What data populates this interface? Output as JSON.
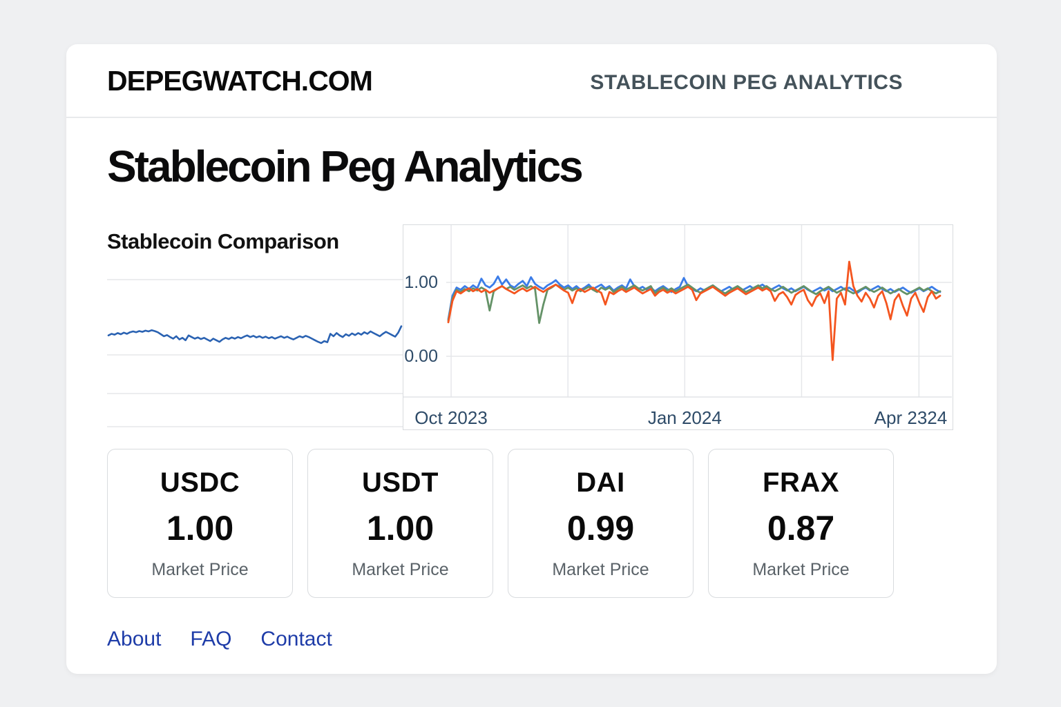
{
  "header": {
    "logo": "DEPEGWATCH.COM",
    "tagline": "STABLECOIN PEG ANALYTICS"
  },
  "page": {
    "title": "Stablecoin Peg Analytics",
    "section_title": "Stablecoin Comparison"
  },
  "cards": [
    {
      "symbol": "USDC",
      "price": "1.00",
      "label": "Market Price"
    },
    {
      "symbol": "USDT",
      "price": "1.00",
      "label": "Market Price"
    },
    {
      "symbol": "DAI",
      "price": "0.99",
      "label": "Market Price"
    },
    {
      "symbol": "FRAX",
      "price": "0.87",
      "label": "Market Price"
    }
  ],
  "footer": {
    "links": [
      "About",
      "FAQ",
      "Contact"
    ]
  },
  "colors": {
    "accent_link": "#1e3ca8",
    "axis_label": "#2e4b68",
    "spark_line": "#2a62b2",
    "series_blue": "#3b7ce8",
    "series_green": "#649267",
    "series_orange": "#f4551f"
  },
  "chart_data": [
    {
      "type": "line",
      "title": "",
      "xlabel": "",
      "ylabel": "",
      "grid": true,
      "legend": false,
      "series": [
        {
          "name": "spark",
          "color": "#2a62b2",
          "values": [
            0.52,
            0.56,
            0.54,
            0.58,
            0.55,
            0.59,
            0.56,
            0.6,
            0.62,
            0.6,
            0.63,
            0.61,
            0.64,
            0.62,
            0.65,
            0.63,
            0.6,
            0.55,
            0.5,
            0.53,
            0.48,
            0.44,
            0.5,
            0.42,
            0.46,
            0.4,
            0.52,
            0.48,
            0.44,
            0.47,
            0.43,
            0.46,
            0.42,
            0.38,
            0.44,
            0.4,
            0.36,
            0.42,
            0.46,
            0.43,
            0.47,
            0.44,
            0.48,
            0.45,
            0.49,
            0.52,
            0.48,
            0.51,
            0.47,
            0.5,
            0.46,
            0.49,
            0.45,
            0.48,
            0.44,
            0.47,
            0.5,
            0.46,
            0.49,
            0.45,
            0.42,
            0.46,
            0.5,
            0.47,
            0.51,
            0.48,
            0.44,
            0.4,
            0.36,
            0.33,
            0.38,
            0.35,
            0.56,
            0.5,
            0.58,
            0.52,
            0.48,
            0.55,
            0.51,
            0.57,
            0.53,
            0.58,
            0.54,
            0.6,
            0.56,
            0.62,
            0.58,
            0.54,
            0.5,
            0.56,
            0.61,
            0.57,
            0.53,
            0.49,
            0.59,
            0.75
          ]
        }
      ]
    },
    {
      "type": "line",
      "title": "Stablecoin Comparison",
      "xlabel": "",
      "ylabel": "",
      "grid": true,
      "legend": false,
      "x_axis": {
        "ticks": [
          {
            "label": "Oct 2023",
            "pos": 0.087
          },
          {
            "label": "Jan 2024",
            "pos": 0.513
          },
          {
            "label": "Apr 2324",
            "pos": 0.925
          }
        ],
        "gridlines": [
          0.087,
          0.3,
          0.513,
          0.726,
          0.94
        ]
      },
      "y_axis": {
        "ticks": [
          {
            "label": "1.00",
            "value": 1.0
          },
          {
            "label": "0.00",
            "value": 0.0
          }
        ],
        "range": [
          -0.55,
          1.55
        ]
      },
      "series": [
        {
          "name": "blue",
          "color": "#3b7ce8",
          "values": [
            0.5,
            0.82,
            0.93,
            0.9,
            0.95,
            0.91,
            0.96,
            0.92,
            1.05,
            0.96,
            0.93,
            0.98,
            1.08,
            0.97,
            1.04,
            0.96,
            0.93,
            0.98,
            1.02,
            0.95,
            1.07,
            0.98,
            0.94,
            0.91,
            0.96,
            0.99,
            1.03,
            0.97,
            0.93,
            0.96,
            0.91,
            0.95,
            0.9,
            0.93,
            0.97,
            0.91,
            0.94,
            0.97,
            0.92,
            0.95,
            0.89,
            0.93,
            0.96,
            0.92,
            1.04,
            0.95,
            0.91,
            0.94,
            0.9,
            0.93,
            0.88,
            0.92,
            0.95,
            0.91,
            0.87,
            0.91,
            0.94,
            1.06,
            0.95,
            0.91,
            0.88,
            0.92,
            0.89,
            0.93,
            0.96,
            0.92,
            0.88,
            0.91,
            0.94,
            0.9,
            0.93,
            0.89,
            0.92,
            0.95,
            0.91,
            0.94,
            0.97,
            0.93,
            0.9,
            0.93,
            0.96,
            0.92,
            0.89,
            0.92,
            0.88,
            0.91,
            0.94,
            0.9,
            0.87,
            0.9,
            0.93,
            0.89,
            0.92,
            0.88,
            0.91,
            0.94,
            0.9,
            0.93,
            0.89,
            0.86,
            0.9,
            0.93,
            0.89,
            0.92,
            0.95,
            0.91,
            0.88,
            0.91,
            0.87,
            0.9,
            0.93,
            0.89,
            0.86,
            0.89,
            0.92,
            0.88,
            0.91,
            0.94,
            0.9,
            0.87
          ]
        },
        {
          "name": "green",
          "color": "#649267",
          "values": [
            0.48,
            0.78,
            0.9,
            0.87,
            0.91,
            0.88,
            0.92,
            0.89,
            0.93,
            0.9,
            0.62,
            0.88,
            0.92,
            0.95,
            0.91,
            0.94,
            0.9,
            0.93,
            0.96,
            0.92,
            0.95,
            0.91,
            0.45,
            0.7,
            0.9,
            0.93,
            0.97,
            0.94,
            0.9,
            0.93,
            0.89,
            0.92,
            0.88,
            0.91,
            0.94,
            0.9,
            0.87,
            0.93,
            0.9,
            0.93,
            0.87,
            0.91,
            0.94,
            0.9,
            0.93,
            0.96,
            0.92,
            0.89,
            0.92,
            0.95,
            0.85,
            0.9,
            0.93,
            0.89,
            0.92,
            0.88,
            0.91,
            0.94,
            0.97,
            0.93,
            0.89,
            0.86,
            0.9,
            0.93,
            0.96,
            0.92,
            0.88,
            0.85,
            0.89,
            0.92,
            0.95,
            0.91,
            0.87,
            0.9,
            0.93,
            0.96,
            0.92,
            0.95,
            0.91,
            0.88,
            0.91,
            0.94,
            0.9,
            0.86,
            0.89,
            0.92,
            0.95,
            0.91,
            0.87,
            0.84,
            0.88,
            0.91,
            0.94,
            0.9,
            0.86,
            0.89,
            0.92,
            0.88,
            0.85,
            0.88,
            0.91,
            0.94,
            0.9,
            0.87,
            0.9,
            0.93,
            0.89,
            0.85,
            0.88,
            0.91,
            0.87,
            0.84,
            0.87,
            0.9,
            0.93,
            0.89,
            0.92,
            0.88,
            0.85,
            0.88
          ]
        },
        {
          "name": "orange",
          "color": "#f4551f",
          "values": [
            0.46,
            0.75,
            0.88,
            0.85,
            0.89,
            0.92,
            0.88,
            0.91,
            0.87,
            0.9,
            0.86,
            0.89,
            0.92,
            0.95,
            0.91,
            0.88,
            0.85,
            0.89,
            0.92,
            0.88,
            0.91,
            0.94,
            0.9,
            0.87,
            0.91,
            0.94,
            0.97,
            0.93,
            0.89,
            0.86,
            0.72,
            0.88,
            0.91,
            0.87,
            0.9,
            0.93,
            0.89,
            0.86,
            0.7,
            0.87,
            0.84,
            0.88,
            0.91,
            0.87,
            0.9,
            0.93,
            0.89,
            0.85,
            0.88,
            0.91,
            0.82,
            0.87,
            0.9,
            0.86,
            0.89,
            0.85,
            0.88,
            0.91,
            0.94,
            0.9,
            0.76,
            0.85,
            0.88,
            0.91,
            0.94,
            0.9,
            0.86,
            0.82,
            0.86,
            0.89,
            0.92,
            0.88,
            0.84,
            0.87,
            0.9,
            0.93,
            0.89,
            0.92,
            0.88,
            0.75,
            0.84,
            0.87,
            0.8,
            0.7,
            0.83,
            0.87,
            0.9,
            0.76,
            0.68,
            0.8,
            0.85,
            0.72,
            0.88,
            -0.05,
            0.78,
            0.86,
            0.7,
            1.28,
            0.95,
            0.82,
            0.74,
            0.86,
            0.78,
            0.66,
            0.82,
            0.88,
            0.72,
            0.5,
            0.76,
            0.84,
            0.68,
            0.55,
            0.78,
            0.86,
            0.72,
            0.6,
            0.8,
            0.88,
            0.78,
            0.82
          ]
        }
      ]
    }
  ]
}
